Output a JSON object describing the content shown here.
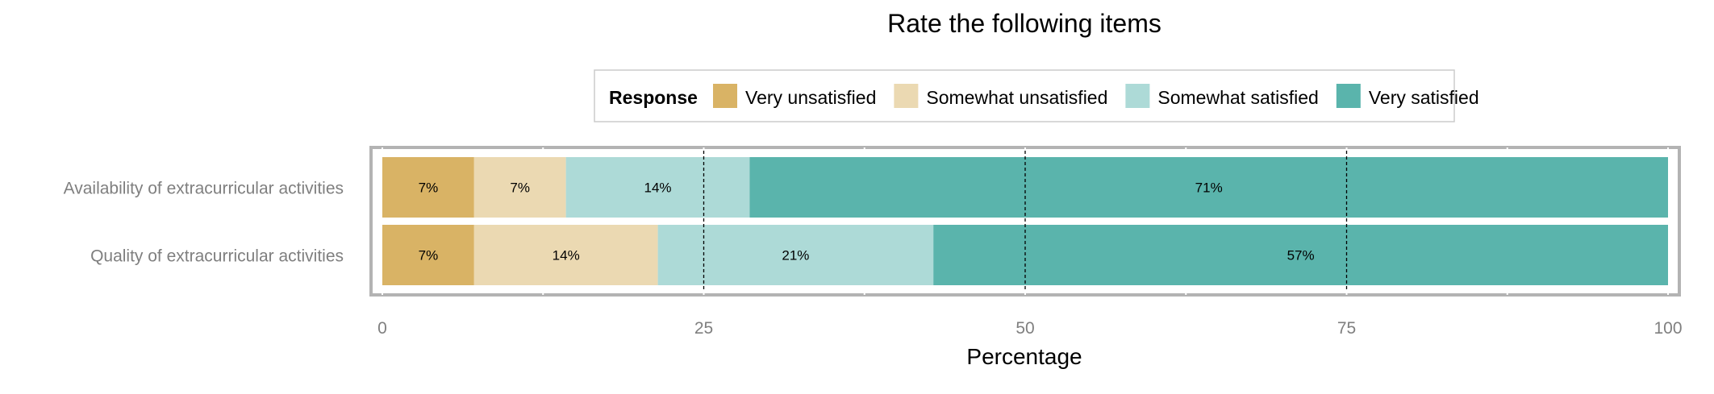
{
  "chart_data": {
    "type": "bar",
    "orientation": "horizontal",
    "stacked": true,
    "title": "Rate the following items",
    "xlabel": "Percentage",
    "ylabel": "",
    "xlim": [
      0,
      100
    ],
    "x_ticks": [
      0,
      25,
      50,
      75,
      100
    ],
    "grid": true,
    "legend": {
      "title": "Response",
      "position": "top",
      "entries": [
        "Very unsatisfied",
        "Somewhat unsatisfied",
        "Somewhat satisfied",
        "Very satisfied"
      ]
    },
    "categories": [
      "Availability of extracurricular activities",
      "Quality of extracurricular activities"
    ],
    "series": [
      {
        "name": "Very unsatisfied",
        "color": "#D9B365",
        "values": [
          7.14,
          7.14
        ],
        "labels": [
          "7%",
          "7%"
        ]
      },
      {
        "name": "Somewhat unsatisfied",
        "color": "#EBD9B2",
        "values": [
          7.14,
          14.29
        ],
        "labels": [
          "7%",
          "14%"
        ]
      },
      {
        "name": "Somewhat satisfied",
        "color": "#ADDAD7",
        "values": [
          14.29,
          21.43
        ],
        "labels": [
          "14%",
          "21%"
        ]
      },
      {
        "name": "Very satisfied",
        "color": "#5AB4AC",
        "values": [
          71.43,
          57.14
        ],
        "labels": [
          "71%",
          "57%"
        ]
      }
    ]
  }
}
